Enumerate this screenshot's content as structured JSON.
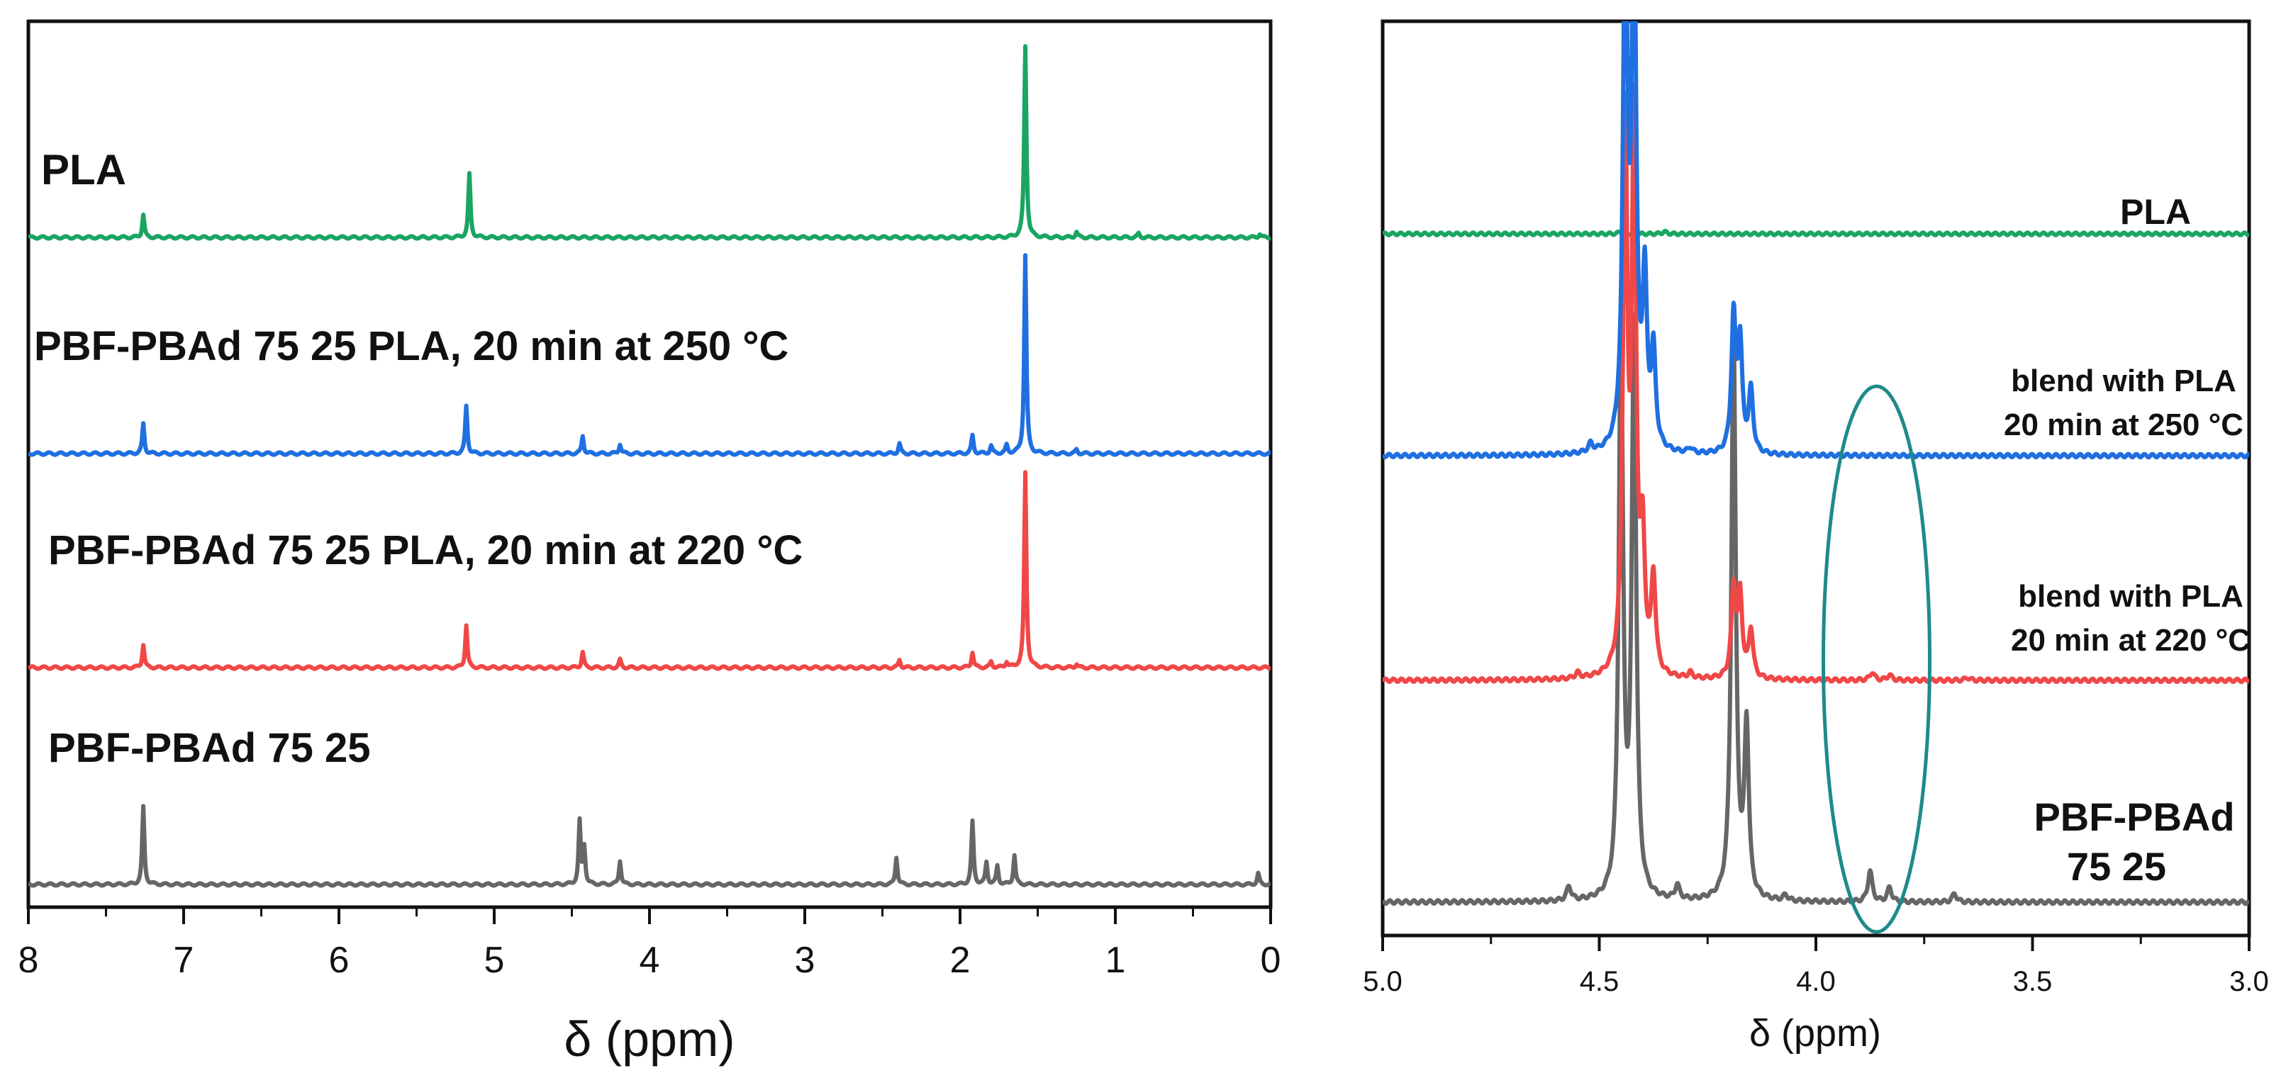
{
  "chart_data": [
    {
      "type": "line",
      "panel": "left",
      "title": "",
      "xlabel": "δ (ppm)",
      "ylabel": "",
      "xlim": [
        8,
        0
      ],
      "xticks": [
        8,
        7,
        6,
        5,
        4,
        3,
        2,
        1,
        0
      ],
      "x_reversed": true,
      "series": [
        {
          "name": "PLA",
          "label": "PLA",
          "color": "#1aa562",
          "peaks": [
            {
              "ppm": 7.26,
              "height": 0.12
            },
            {
              "ppm": 5.16,
              "height": 0.33
            },
            {
              "ppm": 1.58,
              "height": 1.0
            },
            {
              "ppm": 1.25,
              "height": 0.03
            },
            {
              "ppm": 0.85,
              "height": 0.02
            },
            {
              "ppm": 0.07,
              "height": 0.02
            }
          ]
        },
        {
          "name": "PBF-PBAd 75 25 PLA, 20 min at 250 °C",
          "label": "PBF-PBAd 75 25 PLA, 20 min at 250 °C",
          "color": "#1f6fe0",
          "peaks": [
            {
              "ppm": 7.26,
              "height": 0.15
            },
            {
              "ppm": 5.18,
              "height": 0.24
            },
            {
              "ppm": 4.43,
              "height": 0.09
            },
            {
              "ppm": 4.19,
              "height": 0.05
            },
            {
              "ppm": 2.39,
              "height": 0.05
            },
            {
              "ppm": 1.92,
              "height": 0.09
            },
            {
              "ppm": 1.8,
              "height": 0.04
            },
            {
              "ppm": 1.7,
              "height": 0.04
            },
            {
              "ppm": 1.58,
              "height": 1.0
            },
            {
              "ppm": 1.25,
              "height": 0.02
            }
          ]
        },
        {
          "name": "PBF-PBAd 75 25 PLA, 20 min at 220 °C",
          "label": "PBF-PBAd 75 25 PLA, 20 min at 220 °C",
          "color": "#f04747",
          "peaks": [
            {
              "ppm": 7.26,
              "height": 0.12
            },
            {
              "ppm": 5.18,
              "height": 0.22
            },
            {
              "ppm": 4.43,
              "height": 0.08
            },
            {
              "ppm": 4.19,
              "height": 0.04
            },
            {
              "ppm": 2.39,
              "height": 0.04
            },
            {
              "ppm": 1.92,
              "height": 0.08
            },
            {
              "ppm": 1.8,
              "height": 0.03
            },
            {
              "ppm": 1.7,
              "height": 0.03
            },
            {
              "ppm": 1.58,
              "height": 1.0
            },
            {
              "ppm": 1.25,
              "height": 0.02
            }
          ]
        },
        {
          "name": "PBF-PBAd 75 25",
          "label": "PBF-PBAd 75 25",
          "color": "#666666",
          "peaks": [
            {
              "ppm": 7.26,
              "height": 0.42
            },
            {
              "ppm": 4.45,
              "height": 0.34
            },
            {
              "ppm": 4.42,
              "height": 0.2
            },
            {
              "ppm": 4.19,
              "height": 0.13
            },
            {
              "ppm": 2.41,
              "height": 0.15
            },
            {
              "ppm": 1.92,
              "height": 0.34
            },
            {
              "ppm": 1.83,
              "height": 0.12
            },
            {
              "ppm": 1.76,
              "height": 0.1
            },
            {
              "ppm": 1.65,
              "height": 0.16
            },
            {
              "ppm": 0.08,
              "height": 0.06
            }
          ]
        }
      ]
    },
    {
      "type": "line",
      "panel": "right",
      "title": "",
      "xlabel": "δ (ppm)",
      "ylabel": "",
      "xlim": [
        5.0,
        3.0
      ],
      "xticks": [
        "5.0",
        "4.5",
        "4.0",
        "3.5",
        "3.0"
      ],
      "x_reversed": true,
      "series": [
        {
          "name": "PLA",
          "label_lines": [
            "PLA"
          ],
          "color": "#1aa562",
          "peaks": [
            {
              "ppm": 4.45,
              "height": 0.01
            },
            {
              "ppm": 4.35,
              "height": 0.01
            }
          ]
        },
        {
          "name": "blend with PLA 20 min at 250 °C",
          "label_lines": [
            "blend with PLA",
            "20 min at 250 °C"
          ],
          "color": "#1f6fe0",
          "peaks": [
            {
              "ppm": 4.52,
              "height": 0.03
            },
            {
              "ppm": 4.44,
              "height": 2.0
            },
            {
              "ppm": 4.42,
              "height": 2.0
            },
            {
              "ppm": 4.395,
              "height": 0.6
            },
            {
              "ppm": 4.375,
              "height": 0.35
            },
            {
              "ppm": 4.29,
              "height": 0.02
            },
            {
              "ppm": 4.19,
              "height": 0.5
            },
            {
              "ppm": 4.175,
              "height": 0.4
            },
            {
              "ppm": 4.15,
              "height": 0.23
            }
          ]
        },
        {
          "name": "blend with PLA 20 min at 220 °C",
          "label_lines": [
            "blend with PLA",
            "20 min at 220 °C"
          ],
          "color": "#f04747",
          "peaks": [
            {
              "ppm": 4.55,
              "height": 0.02
            },
            {
              "ppm": 4.44,
              "height": 2.0
            },
            {
              "ppm": 4.42,
              "height": 2.0
            },
            {
              "ppm": 4.4,
              "height": 0.45
            },
            {
              "ppm": 4.375,
              "height": 0.35
            },
            {
              "ppm": 4.29,
              "height": 0.02
            },
            {
              "ppm": 4.19,
              "height": 0.33
            },
            {
              "ppm": 4.175,
              "height": 0.3
            },
            {
              "ppm": 4.15,
              "height": 0.18
            },
            {
              "ppm": 3.87,
              "height": 0.03
            },
            {
              "ppm": 3.83,
              "height": 0.02
            },
            {
              "ppm": 3.65,
              "height": 0.01
            }
          ]
        },
        {
          "name": "PBF-PBAd 75 25",
          "label_lines": [
            "PBF-PBAd",
            "75 25"
          ],
          "color": "#666666",
          "peaks": [
            {
              "ppm": 4.57,
              "height": 0.05
            },
            {
              "ppm": 4.45,
              "height": 2.0
            },
            {
              "ppm": 4.42,
              "height": 2.0
            },
            {
              "ppm": 4.32,
              "height": 0.05
            },
            {
              "ppm": 4.19,
              "height": 2.0
            },
            {
              "ppm": 4.16,
              "height": 0.6
            },
            {
              "ppm": 4.07,
              "height": 0.02
            },
            {
              "ppm": 3.875,
              "height": 0.11
            },
            {
              "ppm": 3.83,
              "height": 0.05
            },
            {
              "ppm": 3.68,
              "height": 0.03
            }
          ]
        }
      ],
      "annotation": {
        "type": "ellipse",
        "center_ppm": 3.86,
        "color": "#1e8a8a"
      }
    }
  ]
}
